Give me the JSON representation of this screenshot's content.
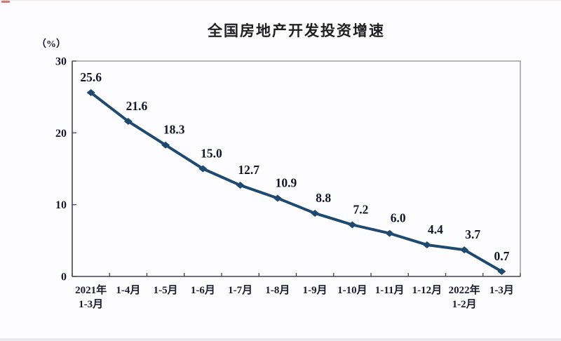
{
  "page": {
    "background": "#fdfdff",
    "top_accent_color": "#c0574b",
    "bottom_strip_color": "#e9e9ee"
  },
  "chart_data": {
    "type": "line",
    "title": "全国房地产开发投资增速",
    "unit_label": "（%）",
    "categories": [
      {
        "lines": [
          "2021年",
          "1-3月"
        ]
      },
      {
        "lines": [
          "1-4月"
        ]
      },
      {
        "lines": [
          "1-5月"
        ]
      },
      {
        "lines": [
          "1-6月"
        ]
      },
      {
        "lines": [
          "1-7月"
        ]
      },
      {
        "lines": [
          "1-8月"
        ]
      },
      {
        "lines": [
          "1-9月"
        ]
      },
      {
        "lines": [
          "1-10月"
        ]
      },
      {
        "lines": [
          "1-11月"
        ]
      },
      {
        "lines": [
          "1-12月"
        ]
      },
      {
        "lines": [
          "2022年",
          "1-2月"
        ]
      },
      {
        "lines": [
          "1-3月"
        ]
      }
    ],
    "values": [
      25.6,
      21.6,
      18.3,
      15.0,
      12.7,
      10.9,
      8.8,
      7.2,
      6.0,
      4.4,
      3.7,
      0.7
    ],
    "data_labels": [
      "25.6",
      "21.6",
      "18.3",
      "15.0",
      "12.7",
      "10.9",
      "8.8",
      "7.2",
      "6.0",
      "4.4",
      "3.7",
      "0.7"
    ],
    "xlabel": "",
    "ylabel": "（%）",
    "ylim": [
      0,
      30
    ],
    "yticks": [
      0,
      10,
      20,
      30
    ],
    "grid": false,
    "legend": "none",
    "line_color": "#1e4a70",
    "marker": "diamond",
    "label_color": "#141428",
    "axis_box_color": "#83838f",
    "axis_main_color": "#4a4a5e"
  }
}
